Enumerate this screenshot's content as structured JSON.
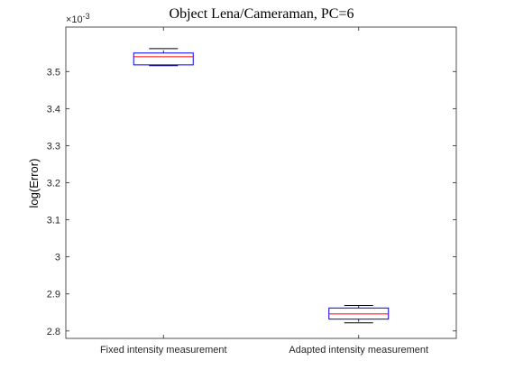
{
  "chart_data": {
    "type": "boxplot",
    "title": "Object Lena/Cameraman, PC=6",
    "xlabel": "",
    "ylabel": "log(Error)",
    "y_exponent_label": "×10",
    "y_exponent_power": "-3",
    "ylim": [
      2.78,
      3.62
    ],
    "yticks": [
      2.8,
      2.9,
      3.0,
      3.1,
      3.2,
      3.3,
      3.4,
      3.5
    ],
    "ytick_labels": [
      "2.8",
      "2.9",
      "3",
      "3.1",
      "3.2",
      "3.3",
      "3.4",
      "3.5"
    ],
    "grid": false,
    "categories": [
      "Fixed intensity measurement",
      "Adapted intensity measurement"
    ],
    "boxes": [
      {
        "category": "Fixed intensity measurement",
        "whisker_low": 3.516,
        "q1": 3.518,
        "median": 3.54,
        "q3": 3.55,
        "whisker_high": 3.562
      },
      {
        "category": "Adapted intensity measurement",
        "whisker_low": 2.822,
        "q1": 2.832,
        "median": 2.846,
        "q3": 2.862,
        "whisker_high": 2.869
      }
    ],
    "colors": {
      "box": "#0000ff",
      "median": "#ff0000",
      "whisker": "#000000",
      "axis": "#262626"
    }
  }
}
